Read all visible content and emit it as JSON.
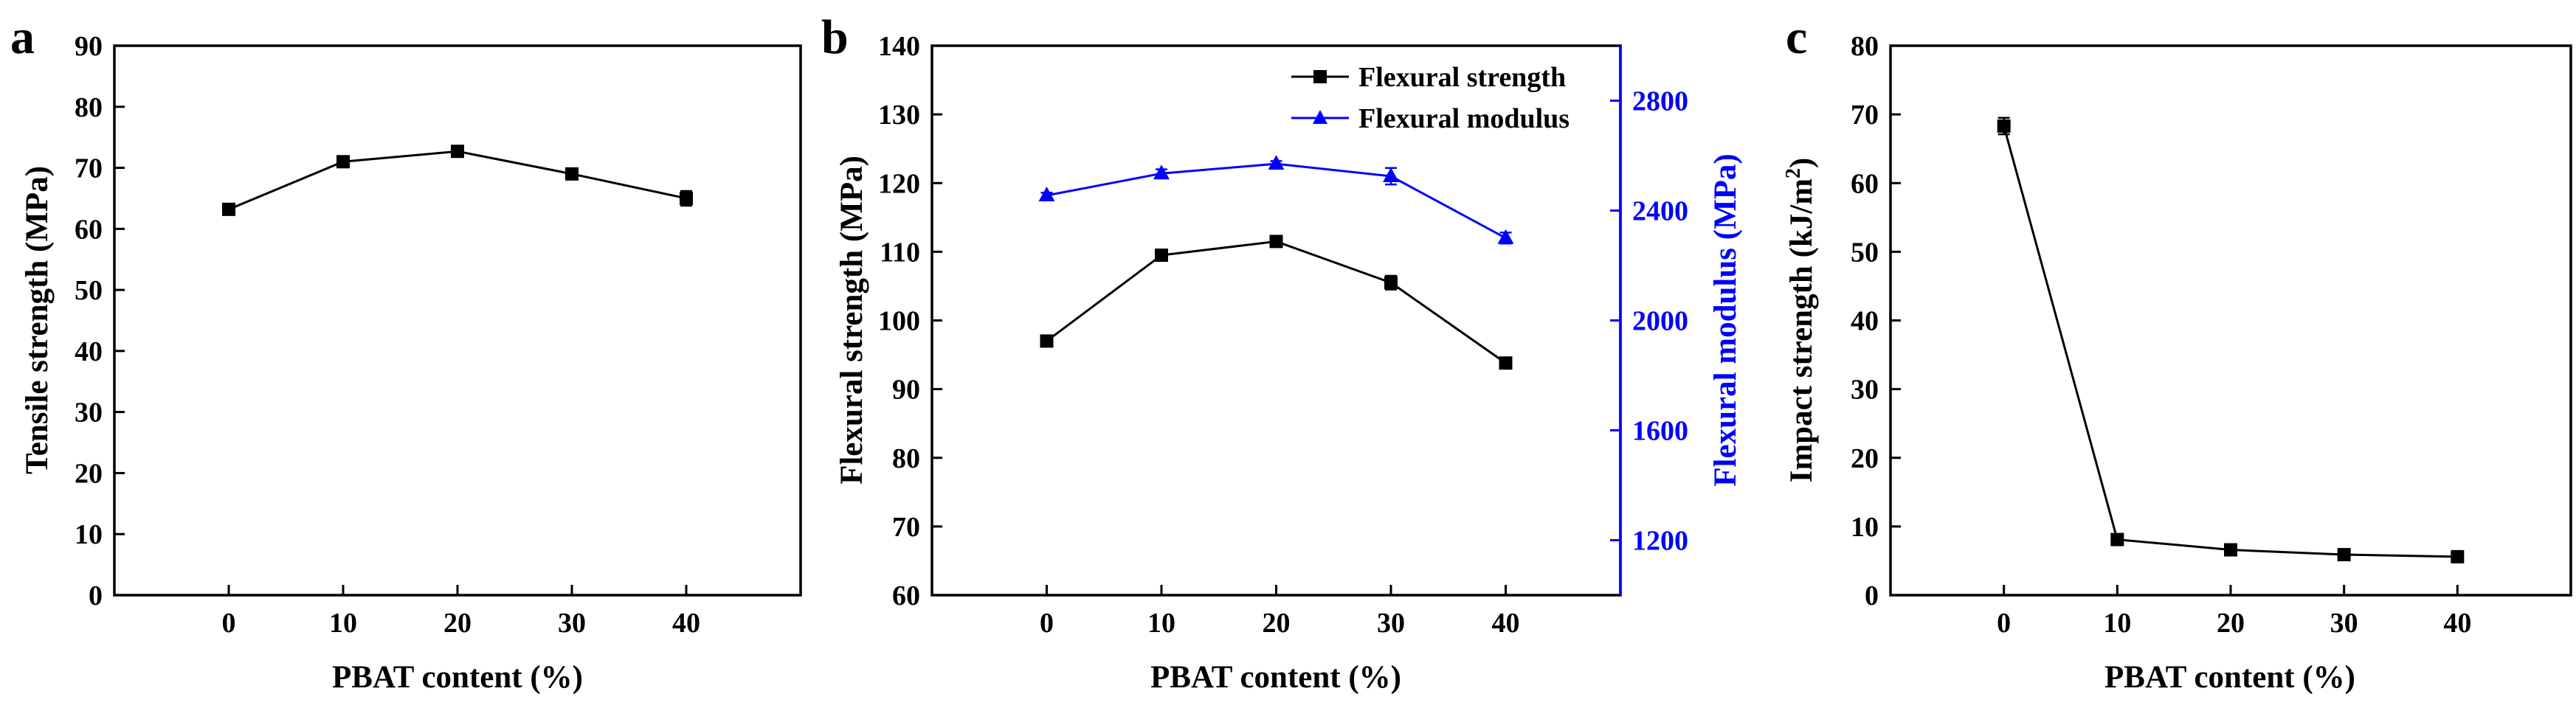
{
  "chart_data": [
    {
      "type": "line",
      "panel_label": "a",
      "title": "",
      "xlabel": "PBAT content (%)",
      "ylabel": "Tensile strength (MPa)",
      "x": [
        0,
        10,
        20,
        30,
        40
      ],
      "x_ticks": [
        "0",
        "10",
        "20",
        "30",
        "40"
      ],
      "xlim": [
        -10,
        50
      ],
      "ylim": [
        0,
        90
      ],
      "y_ticks": [
        "0",
        "10",
        "20",
        "30",
        "40",
        "50",
        "60",
        "70",
        "80",
        "90"
      ],
      "series": [
        {
          "name": "Tensile strength",
          "values": [
            63.2,
            71.0,
            72.7,
            69.0,
            65.0
          ],
          "errors": [
            0.6,
            0.6,
            0.5,
            0.8,
            1.2
          ],
          "color": "#000000",
          "marker": "square",
          "axis": "left"
        }
      ]
    },
    {
      "type": "line",
      "panel_label": "b",
      "title": "",
      "xlabel": "PBAT content (%)",
      "ylabel": "Flexural strength (MPa)",
      "ylabel_right": "Flexural modulus (MPa)",
      "x": [
        0,
        10,
        20,
        30,
        40
      ],
      "x_ticks": [
        "0",
        "10",
        "20",
        "30",
        "40"
      ],
      "xlim": [
        -10,
        50
      ],
      "ylim": [
        60,
        140
      ],
      "y_ticks": [
        "60",
        "70",
        "80",
        "90",
        "100",
        "110",
        "120",
        "130",
        "140"
      ],
      "ylim_right": [
        1000,
        3000
      ],
      "y_ticks_right": [
        "1200",
        "1600",
        "2000",
        "2400",
        "2800"
      ],
      "legend_position": "top-right",
      "series": [
        {
          "name": "Flexural strength",
          "values": [
            97.0,
            109.5,
            111.5,
            105.5,
            93.8
          ],
          "errors": [
            0.4,
            0.5,
            0.5,
            1.0,
            0.6
          ],
          "color": "#000000",
          "marker": "square",
          "axis": "left"
        },
        {
          "name": "Flexural modulus",
          "values": [
            2455,
            2535,
            2570,
            2525,
            2300
          ],
          "errors": [
            10,
            15,
            10,
            30,
            20
          ],
          "color": "#0000ff",
          "marker": "triangle",
          "axis": "right"
        }
      ]
    },
    {
      "type": "line",
      "panel_label": "c",
      "title": "",
      "xlabel": "PBAT content (%)",
      "ylabel": "Impact strength (kJ/m",
      "ylabel_sup": "2",
      "ylabel_end": ")",
      "x": [
        0,
        10,
        20,
        30,
        40
      ],
      "x_ticks": [
        "0",
        "10",
        "20",
        "30",
        "40"
      ],
      "xlim": [
        -10,
        50
      ],
      "ylim": [
        0,
        80
      ],
      "y_ticks": [
        "0",
        "10",
        "20",
        "30",
        "40",
        "50",
        "60",
        "70",
        "80"
      ],
      "series": [
        {
          "name": "Impact strength",
          "values": [
            68.3,
            8.1,
            6.6,
            5.9,
            5.6
          ],
          "errors": [
            1.2,
            0.7,
            0.3,
            0.4,
            0.3
          ],
          "color": "#000000",
          "marker": "square",
          "axis": "left"
        }
      ]
    }
  ]
}
